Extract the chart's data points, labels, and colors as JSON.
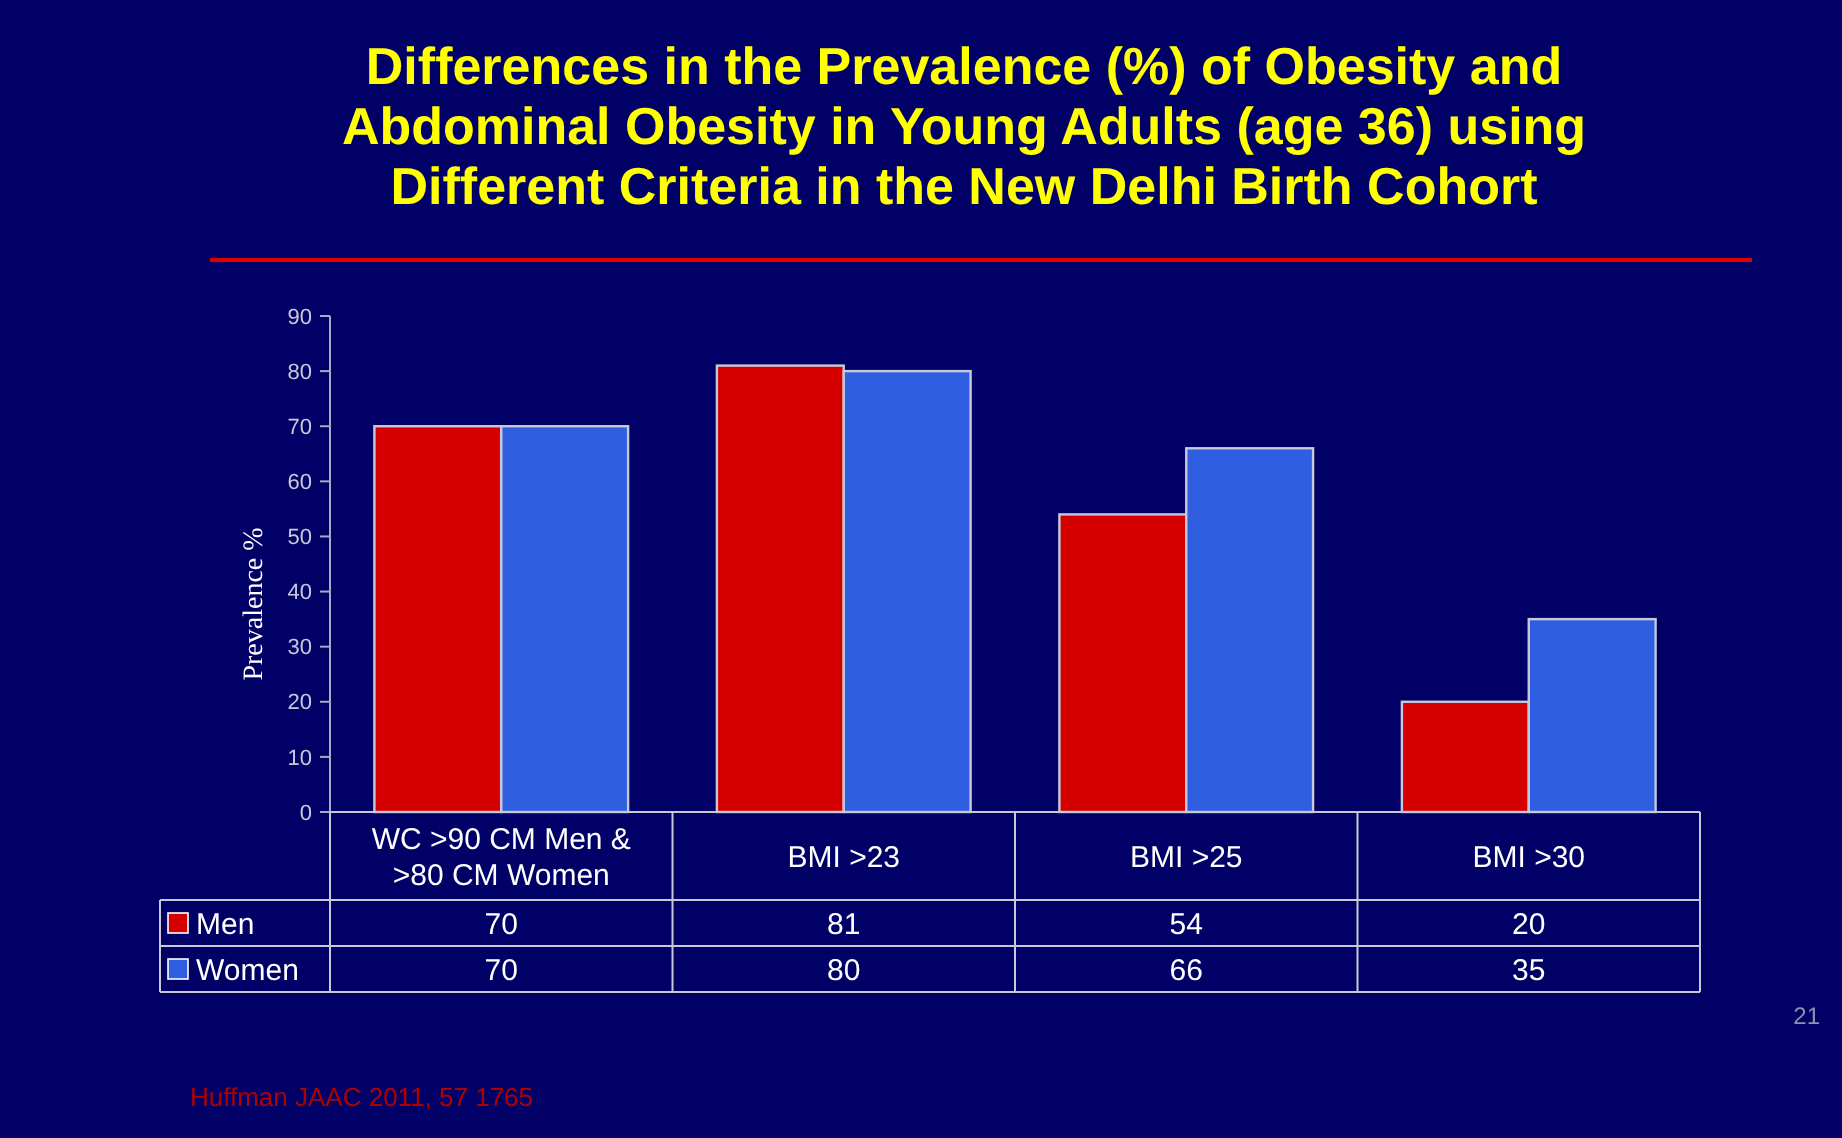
{
  "chart_data": {
    "type": "bar",
    "title": "Differences in the Prevalence (%) of Obesity and Abdominal Obesity in Young Adults (age 36) using Different  Criteria in the  New Delhi Birth Cohort",
    "ylabel": "Prevalence %",
    "categories": [
      "WC >90 CM Men & >80 CM Women",
      "BMI >23",
      "BMI >25",
      "BMI >30"
    ],
    "series": [
      {
        "name": "Men",
        "color": "#d40000",
        "values": [
          70,
          81,
          54,
          20
        ]
      },
      {
        "name": "Women",
        "color": "#2f5fe0",
        "values": [
          70,
          80,
          66,
          35
        ]
      }
    ],
    "ylim": [
      0,
      90
    ],
    "yticks": [
      0,
      10,
      20,
      30,
      40,
      50,
      60,
      70,
      80,
      90
    ],
    "grid": false,
    "legend": "bottom left",
    "data_labels": true,
    "annotations": [
      "Huffman  JAAC 2011, 57 1765",
      "21"
    ]
  }
}
